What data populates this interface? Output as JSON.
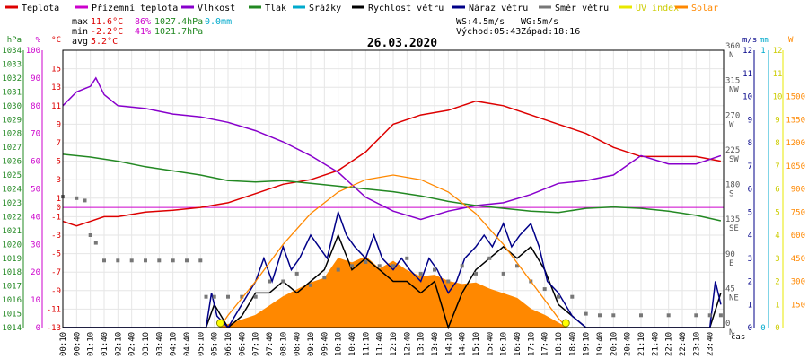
{
  "legend": [
    {
      "label": "Teplota",
      "color": "#dd0000"
    },
    {
      "label": "Přízemní teplota",
      "color": "#cc00cc"
    },
    {
      "label": "Vlhkost",
      "color": "#8800cc"
    },
    {
      "label": "Tlak",
      "color": "#228822"
    },
    {
      "label": "Srážky",
      "color": "#00aacc"
    },
    {
      "label": "Rychlost větru",
      "color": "#000000"
    },
    {
      "label": "Náraz větru",
      "color": "#000088"
    },
    {
      "label": "Směr větru",
      "color": "#777777"
    },
    {
      "label": "UV index",
      "color": "#e8e800"
    },
    {
      "label": "Solar",
      "color": "#ff8800"
    }
  ],
  "stats": {
    "max": {
      "label": "max",
      "temp": "11.6°C",
      "hum": "86%",
      "press": "1027.4hPa",
      "rain": "0.0mm"
    },
    "min": {
      "label": "min",
      "temp": "-2.2°C",
      "hum": "41%",
      "press": "1021.7hPa"
    },
    "avg": {
      "label": "avg",
      "temp": "5.2°C"
    }
  },
  "info": {
    "ws": "WS:4.5m/s",
    "wg": "WG:5m/s",
    "vychod": "Východ:05:43",
    "zapad": "Západ:18:16"
  },
  "date": "26.03.2020",
  "chart_data": {
    "type": "line",
    "title": "26.03.2020",
    "xlabel": "čas",
    "x_ticks": [
      "00:10",
      "00:40",
      "01:10",
      "01:40",
      "02:10",
      "02:40",
      "03:10",
      "03:40",
      "04:10",
      "04:40",
      "05:10",
      "05:40",
      "06:10",
      "06:40",
      "07:10",
      "07:40",
      "08:10",
      "08:40",
      "09:10",
      "09:40",
      "10:10",
      "10:40",
      "11:10",
      "11:40",
      "12:10",
      "12:40",
      "13:10",
      "13:40",
      "14:10",
      "14:40",
      "15:10",
      "15:40",
      "16:10",
      "16:40",
      "17:10",
      "17:40",
      "18:10",
      "18:40",
      "19:10",
      "19:40",
      "20:10",
      "20:40",
      "21:10",
      "21:40",
      "22:10",
      "22:40",
      "23:10",
      "23:40"
    ],
    "axes": {
      "pressure": {
        "unit": "hPa",
        "color": "#228822",
        "range": [
          1014,
          1034
        ],
        "ticks": [
          1034,
          1033,
          1032,
          1031,
          1030,
          1029,
          1028,
          1027,
          1026,
          1025,
          1024,
          1023,
          1022,
          1021,
          1020,
          1019,
          1018,
          1017,
          1016,
          1015,
          1014
        ]
      },
      "humidity": {
        "unit": "%",
        "color": "#cc00cc",
        "range": [
          0,
          100
        ],
        "ticks": [
          100,
          90,
          80,
          70,
          60,
          50,
          40,
          30,
          20,
          10,
          0
        ]
      },
      "temperature": {
        "unit": "°C",
        "color": "#dd0000",
        "range": [
          -13,
          17
        ],
        "ticks": [
          15,
          13,
          11,
          9,
          7,
          5,
          3,
          1,
          -1,
          -3,
          -5,
          -7,
          -9,
          -11,
          -13
        ],
        "extra_ticks": [
          0
        ]
      },
      "direction": {
        "unit": "",
        "color": "#555555",
        "range": [
          0,
          360
        ],
        "ticks": [
          {
            "v": 360,
            "l": "360",
            "d": "N"
          },
          {
            "v": 315,
            "l": "315",
            "d": "NW"
          },
          {
            "v": 270,
            "l": "270",
            "d": "W"
          },
          {
            "v": 225,
            "l": "225",
            "d": "SW"
          },
          {
            "v": 180,
            "l": "180",
            "d": "S"
          },
          {
            "v": 135,
            "l": "135",
            "d": "SE"
          },
          {
            "v": 90,
            "l": "90",
            "d": "E"
          },
          {
            "v": 45,
            "l": "45",
            "d": "NE"
          },
          {
            "v": 0,
            "l": "0",
            "d": "N"
          }
        ]
      },
      "wind": {
        "unit": "m/s",
        "color": "#000088",
        "range": [
          0,
          12
        ],
        "ticks": [
          12,
          11,
          10,
          9,
          8,
          7,
          6,
          5,
          4,
          3,
          2,
          1,
          0
        ]
      },
      "rain": {
        "unit": "mm",
        "color": "#00aacc",
        "range": [
          0,
          1
        ],
        "ticks": [
          1,
          0
        ]
      },
      "uv": {
        "unit": "",
        "color": "#cccc00",
        "range": [
          0,
          12
        ],
        "ticks": [
          12,
          11,
          10,
          9,
          8,
          7,
          6,
          5,
          4,
          3,
          2,
          1,
          0
        ]
      },
      "solar": {
        "unit": "W",
        "color": "#ff8800",
        "range": [
          0,
          1800
        ],
        "ticks": [
          1500,
          1350,
          1200,
          1050,
          900,
          750,
          600,
          450,
          300,
          150
        ]
      }
    },
    "series": [
      {
        "name": "Teplota",
        "axis": "temperature",
        "color": "#dd0000",
        "x": [
          0,
          0.5,
          1,
          1.5,
          2,
          3,
          4,
          5,
          6,
          7,
          8,
          9,
          10,
          11,
          12,
          13,
          14,
          15,
          16,
          17,
          18,
          19,
          20,
          21,
          22,
          23,
          23.9
        ],
        "y": [
          -1.5,
          -2,
          -1.5,
          -1,
          -1,
          -0.5,
          -0.3,
          0,
          0.5,
          1.5,
          2.5,
          3,
          4,
          6,
          9,
          10,
          10.5,
          11.5,
          11,
          10,
          9,
          8,
          6.5,
          5.5,
          5.5,
          5.5,
          5
        ]
      },
      {
        "name": "Vlhkost",
        "axis": "humidity",
        "color": "#8800cc",
        "x": [
          0,
          0.5,
          1,
          1.2,
          1.5,
          2,
          3,
          4,
          5,
          6,
          7,
          8,
          9,
          10,
          11,
          12,
          13,
          14,
          15,
          16,
          17,
          18,
          19,
          20,
          21,
          22,
          23,
          23.9
        ],
        "y": [
          80,
          85,
          87,
          90,
          84,
          80,
          79,
          77,
          76,
          74,
          71,
          67,
          62,
          56,
          47,
          42,
          39,
          42,
          44,
          45,
          48,
          52,
          53,
          55,
          62,
          59,
          59,
          62
        ]
      },
      {
        "name": "Tlak",
        "axis": "pressure",
        "color": "#228822",
        "x": [
          0,
          1,
          2,
          3,
          4,
          5,
          6,
          7,
          8,
          9,
          10,
          11,
          12,
          13,
          14,
          15,
          16,
          17,
          18,
          19,
          20,
          21,
          22,
          23,
          23.9
        ],
        "y": [
          1026.5,
          1026.3,
          1026,
          1025.6,
          1025.3,
          1025,
          1024.6,
          1024.5,
          1024.6,
          1024.4,
          1024.2,
          1024,
          1023.8,
          1023.5,
          1023.1,
          1022.8,
          1022.6,
          1022.4,
          1022.3,
          1022.6,
          1022.7,
          1022.6,
          1022.4,
          1022.1,
          1021.7
        ]
      },
      {
        "name": "Rychlost větru",
        "axis": "wind",
        "color": "#000000",
        "x": [
          0,
          5.2,
          5.5,
          6,
          6.5,
          7,
          7.5,
          8,
          8.5,
          9,
          9.5,
          10,
          10.5,
          11,
          11.5,
          12,
          12.5,
          13,
          13.5,
          14,
          14.5,
          15,
          15.5,
          16,
          16.5,
          17,
          17.5,
          18,
          18.5,
          19,
          23.5,
          23.9
        ],
        "y": [
          0,
          0,
          1,
          0,
          0.5,
          1.5,
          1.5,
          2,
          1.5,
          2,
          2.5,
          4,
          2.5,
          3,
          2.5,
          2,
          2,
          1.5,
          2,
          0,
          1.5,
          2.5,
          3,
          3.5,
          3,
          3.5,
          2.5,
          1,
          0.5,
          0,
          0,
          1.5
        ]
      },
      {
        "name": "Náraz větru",
        "axis": "wind",
        "color": "#000088",
        "x": [
          0,
          5.2,
          5.4,
          5.6,
          6,
          6.5,
          7,
          7.3,
          7.6,
          8,
          8.3,
          8.6,
          9,
          9.3,
          9.6,
          10,
          10.3,
          10.6,
          11,
          11.3,
          11.6,
          12,
          12.3,
          12.6,
          13,
          13.3,
          13.6,
          14,
          14.3,
          14.6,
          15,
          15.3,
          15.6,
          16,
          16.3,
          16.6,
          17,
          17.3,
          17.6,
          18,
          18.5,
          19,
          23.5,
          23.7,
          23.9
        ],
        "y": [
          0,
          0,
          1.5,
          0.5,
          0,
          1,
          2,
          3,
          2,
          3.5,
          2.5,
          3,
          4,
          3.5,
          3,
          5,
          4,
          3.5,
          3,
          4,
          3,
          2.5,
          3,
          2.5,
          2,
          3,
          2.5,
          1.5,
          2,
          3,
          3.5,
          4,
          3.5,
          4.5,
          3.5,
          4,
          4.5,
          3.5,
          2,
          1.5,
          0.5,
          0,
          0,
          2,
          1
        ]
      },
      {
        "name": "Směr větru",
        "axis": "direction",
        "color": "#777777",
        "x": [
          0,
          0.5,
          0.8,
          1,
          1.2,
          1.5,
          2,
          2.5,
          3,
          3.5,
          4,
          4.5,
          5,
          5.2,
          5.5,
          6,
          6.5,
          7,
          7.5,
          8,
          8.5,
          9,
          9.5,
          10,
          10.5,
          11,
          11.5,
          12,
          12.5,
          13,
          13.5,
          14,
          14.5,
          15,
          15.5,
          16,
          16.5,
          17,
          17.5,
          18,
          18.5,
          19,
          19.5,
          20,
          21,
          22,
          23,
          23.5,
          23.9
        ],
        "y": [
          170,
          168,
          165,
          120,
          110,
          87,
          87,
          87,
          87,
          87,
          87,
          87,
          87,
          40,
          40,
          40,
          40,
          40,
          60,
          60,
          70,
          55,
          65,
          75,
          80,
          85,
          80,
          80,
          90,
          70,
          75,
          60,
          80,
          70,
          90,
          70,
          80,
          60,
          50,
          40,
          40,
          18,
          16,
          16,
          16,
          16,
          16,
          16,
          16
        ]
      },
      {
        "name": "Solar",
        "axis": "solar",
        "color": "#ff8800",
        "x": [
          5.7,
          6,
          7,
          8,
          9,
          9.5,
          10,
          10.5,
          11,
          11.5,
          12,
          12.5,
          13,
          13.5,
          14,
          14.5,
          15,
          15.5,
          16,
          16.5,
          17,
          17.5,
          18,
          18.3
        ],
        "y": [
          0,
          20,
          80,
          200,
          290,
          320,
          450,
          420,
          460,
          380,
          430,
          370,
          330,
          340,
          300,
          280,
          290,
          250,
          220,
          190,
          120,
          80,
          30,
          0
        ]
      },
      {
        "name": "Solar max",
        "axis": "solar",
        "color": "#ff8800",
        "x": [
          5.7,
          6,
          7,
          8,
          9,
          10,
          11,
          12,
          13,
          14,
          15,
          16,
          17,
          18,
          18.3
        ],
        "y": [
          0,
          80,
          300,
          540,
          740,
          880,
          960,
          990,
          960,
          880,
          740,
          540,
          300,
          60,
          0
        ]
      }
    ]
  }
}
